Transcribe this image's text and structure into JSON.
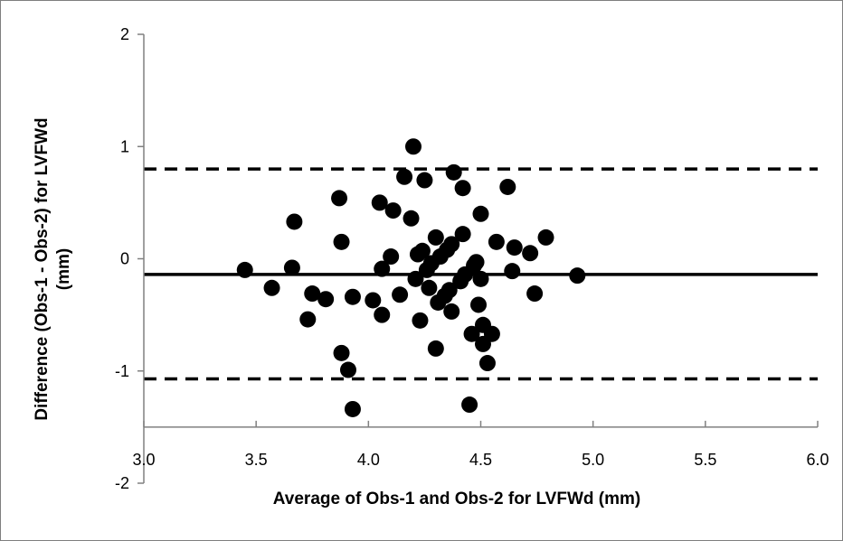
{
  "chart_data": {
    "type": "scatter",
    "xlabel": "Average of Obs-1 and Obs-2 for LVFWd (mm)",
    "ylabel_lines": [
      "Difference (Obs-1 - Obs-2) for LVFWd",
      "(mm)"
    ],
    "xlim": [
      3.0,
      6.0
    ],
    "ylim": [
      -2,
      2
    ],
    "x_ticks": [
      "3.0",
      "3.5",
      "4.0",
      "4.5",
      "5.0",
      "5.5",
      "6.0"
    ],
    "y_ticks": [
      "2",
      "1",
      "0",
      "-1",
      "-2"
    ],
    "x_axis_crosses_y": -1.5,
    "grid": false,
    "legend": "none",
    "reference_lines": [
      {
        "role": "mean-difference",
        "y": -0.14,
        "style": "solid"
      },
      {
        "role": "upper-limit-of-agreement",
        "y": 0.8,
        "style": "dashed"
      },
      {
        "role": "lower-limit-of-agreement",
        "y": -1.07,
        "style": "dashed"
      }
    ],
    "points": [
      [
        3.45,
        -0.1
      ],
      [
        3.57,
        -0.26
      ],
      [
        3.66,
        -0.08
      ],
      [
        3.67,
        0.33
      ],
      [
        3.73,
        -0.54
      ],
      [
        3.75,
        -0.31
      ],
      [
        3.81,
        -0.36
      ],
      [
        3.87,
        0.54
      ],
      [
        3.88,
        0.15
      ],
      [
        3.88,
        -0.84
      ],
      [
        3.91,
        -0.99
      ],
      [
        3.93,
        -0.34
      ],
      [
        3.93,
        -1.34
      ],
      [
        4.02,
        -0.37
      ],
      [
        4.05,
        0.5
      ],
      [
        4.06,
        -0.09
      ],
      [
        4.06,
        -0.5
      ],
      [
        4.1,
        0.02
      ],
      [
        4.11,
        0.43
      ],
      [
        4.14,
        -0.32
      ],
      [
        4.16,
        0.73
      ],
      [
        4.19,
        0.36
      ],
      [
        4.2,
        1.0
      ],
      [
        4.21,
        -0.18
      ],
      [
        4.22,
        0.04
      ],
      [
        4.23,
        -0.55
      ],
      [
        4.24,
        0.07
      ],
      [
        4.25,
        0.7
      ],
      [
        4.26,
        -0.1
      ],
      [
        4.27,
        -0.26
      ],
      [
        4.28,
        -0.04
      ],
      [
        4.3,
        0.19
      ],
      [
        4.3,
        -0.8
      ],
      [
        4.31,
        -0.39
      ],
      [
        4.32,
        0.02
      ],
      [
        4.34,
        -0.33
      ],
      [
        4.35,
        0.08
      ],
      [
        4.36,
        -0.28
      ],
      [
        4.37,
        -0.47
      ],
      [
        4.37,
        0.13
      ],
      [
        4.38,
        0.77
      ],
      [
        4.41,
        -0.2
      ],
      [
        4.42,
        0.22
      ],
      [
        4.42,
        0.63
      ],
      [
        4.43,
        -0.14
      ],
      [
        4.45,
        -1.3
      ],
      [
        4.46,
        -0.67
      ],
      [
        4.47,
        -0.06
      ],
      [
        4.48,
        -0.03
      ],
      [
        4.49,
        -0.41
      ],
      [
        4.5,
        0.4
      ],
      [
        4.5,
        -0.18
      ],
      [
        4.51,
        -0.59
      ],
      [
        4.51,
        -0.76
      ],
      [
        4.53,
        -0.93
      ],
      [
        4.55,
        -0.67
      ],
      [
        4.57,
        0.15
      ],
      [
        4.62,
        0.64
      ],
      [
        4.64,
        -0.11
      ],
      [
        4.65,
        0.1
      ],
      [
        4.72,
        0.05
      ],
      [
        4.74,
        -0.31
      ],
      [
        4.79,
        0.19
      ],
      [
        4.93,
        -0.15
      ]
    ]
  },
  "colors": {
    "marker": "#000000",
    "axis": "#808080",
    "frame_border": "#7f7f7f",
    "reference_line": "#000000"
  }
}
